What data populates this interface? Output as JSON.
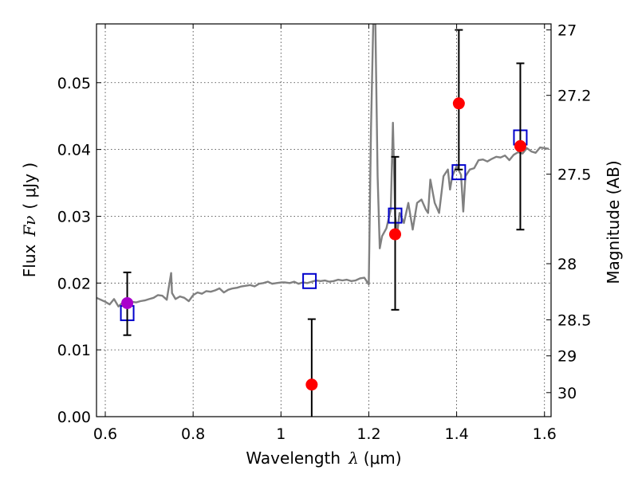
{
  "chart_data": {
    "type": "scatter",
    "title": "",
    "xlabel": "Wavelength",
    "xlabel_symbol": "λ",
    "xlabel_unit": "(μm)",
    "ylabel": "Flux",
    "ylabel_symbol": "Fν",
    "ylabel_unit": "( μJy )",
    "y2label": "Magnitude (AB)",
    "xlim": [
      0.58,
      1.615
    ],
    "ylim": [
      0.0,
      0.0588
    ],
    "grid": true,
    "x_ticks": [
      {
        "value": 0.6,
        "label": "0.6"
      },
      {
        "value": 0.8,
        "label": "0.8"
      },
      {
        "value": 1.0,
        "label": "1"
      },
      {
        "value": 1.2,
        "label": "1.2"
      },
      {
        "value": 1.4,
        "label": "1.4"
      },
      {
        "value": 1.6,
        "label": "1.6"
      }
    ],
    "y_ticks": [
      {
        "value": 0.0,
        "label": "0.00"
      },
      {
        "value": 0.01,
        "label": "0.01"
      },
      {
        "value": 0.02,
        "label": "0.02"
      },
      {
        "value": 0.03,
        "label": "0.03"
      },
      {
        "value": 0.04,
        "label": "0.04"
      },
      {
        "value": 0.05,
        "label": "0.05"
      }
    ],
    "y2_ticks": [
      {
        "flux": 0.0579,
        "label": "27"
      },
      {
        "flux": 0.0481,
        "label": "27.2"
      },
      {
        "flux": 0.0363,
        "label": "27.5"
      },
      {
        "flux": 0.0229,
        "label": "28"
      },
      {
        "flux": 0.0145,
        "label": "28.5"
      },
      {
        "flux": 0.0091,
        "label": "29"
      },
      {
        "flux": 0.0036,
        "label": "30"
      }
    ],
    "series": [
      {
        "kind": "spectrum",
        "color": "#808080",
        "x": [
          0.58,
          0.59,
          0.6,
          0.61,
          0.62,
          0.63,
          0.64,
          0.65,
          0.66,
          0.67,
          0.68,
          0.69,
          0.7,
          0.71,
          0.72,
          0.73,
          0.74,
          0.75,
          0.752,
          0.76,
          0.77,
          0.78,
          0.79,
          0.8,
          0.81,
          0.82,
          0.83,
          0.84,
          0.85,
          0.86,
          0.87,
          0.88,
          0.89,
          0.9,
          0.91,
          0.92,
          0.93,
          0.94,
          0.95,
          0.96,
          0.97,
          0.98,
          0.99,
          1.0,
          1.01,
          1.02,
          1.03,
          1.04,
          1.05,
          1.06,
          1.07,
          1.08,
          1.09,
          1.1,
          1.11,
          1.12,
          1.13,
          1.14,
          1.15,
          1.16,
          1.17,
          1.18,
          1.19,
          1.2,
          1.205,
          1.21,
          1.215,
          1.22,
          1.225,
          1.23,
          1.24,
          1.25,
          1.255,
          1.26,
          1.265,
          1.27,
          1.28,
          1.29,
          1.3,
          1.31,
          1.32,
          1.33,
          1.335,
          1.34,
          1.35,
          1.36,
          1.37,
          1.38,
          1.385,
          1.39,
          1.4,
          1.41,
          1.415,
          1.42,
          1.43,
          1.44,
          1.45,
          1.46,
          1.47,
          1.48,
          1.49,
          1.5,
          1.51,
          1.52,
          1.53,
          1.54,
          1.55,
          1.56,
          1.57,
          1.58,
          1.59,
          1.6,
          1.61
        ],
        "y": [
          0.0178,
          0.0175,
          0.0172,
          0.0168,
          0.0176,
          0.0165,
          0.0171,
          0.0168,
          0.0172,
          0.0171,
          0.0173,
          0.0174,
          0.0176,
          0.0178,
          0.0182,
          0.0181,
          0.0175,
          0.0215,
          0.0185,
          0.0176,
          0.018,
          0.0178,
          0.0173,
          0.0182,
          0.0186,
          0.0184,
          0.0188,
          0.0187,
          0.0189,
          0.0192,
          0.0186,
          0.019,
          0.0192,
          0.0193,
          0.0195,
          0.0196,
          0.0197,
          0.0195,
          0.0199,
          0.02,
          0.0202,
          0.0199,
          0.02,
          0.0201,
          0.0201,
          0.02,
          0.0202,
          0.0199,
          0.0201,
          0.02,
          0.0202,
          0.0204,
          0.0203,
          0.0204,
          0.0202,
          0.0203,
          0.0205,
          0.0204,
          0.0205,
          0.0203,
          0.0204,
          0.0207,
          0.0208,
          0.0198,
          0.043,
          0.0588,
          0.0588,
          0.036,
          0.0252,
          0.027,
          0.0282,
          0.031,
          0.044,
          0.03,
          0.0275,
          0.0305,
          0.029,
          0.032,
          0.028,
          0.032,
          0.0325,
          0.031,
          0.0305,
          0.0355,
          0.032,
          0.0305,
          0.036,
          0.037,
          0.034,
          0.036,
          0.0375,
          0.0362,
          0.0307,
          0.036,
          0.037,
          0.0372,
          0.0384,
          0.0385,
          0.0382,
          0.0386,
          0.0389,
          0.0388,
          0.0391,
          0.0384,
          0.0392,
          0.0396,
          0.0394,
          0.0402,
          0.0397,
          0.0395,
          0.0403,
          0.0402,
          0.0401
        ]
      },
      {
        "kind": "model_photometry",
        "color": "#0000cc",
        "x": [
          0.65,
          1.065,
          1.26,
          1.405,
          1.545
        ],
        "y": [
          0.0155,
          0.0203,
          0.0301,
          0.0366,
          0.0418
        ]
      },
      {
        "kind": "observed",
        "color": "#ff0000",
        "x": [
          1.07,
          1.26,
          1.405,
          1.545
        ],
        "y": [
          0.0048,
          0.0273,
          0.0469,
          0.0405
        ],
        "err_low": [
          0.0048,
          0.0113,
          0.0099,
          0.0125
        ],
        "err_high": [
          0.0098,
          0.0116,
          0.011,
          0.0124
        ]
      },
      {
        "kind": "observed",
        "color": "#aa00cc",
        "x": [
          0.65
        ],
        "y": [
          0.017
        ],
        "err_low": [
          0.0048
        ],
        "err_high": [
          0.0046
        ]
      }
    ]
  }
}
